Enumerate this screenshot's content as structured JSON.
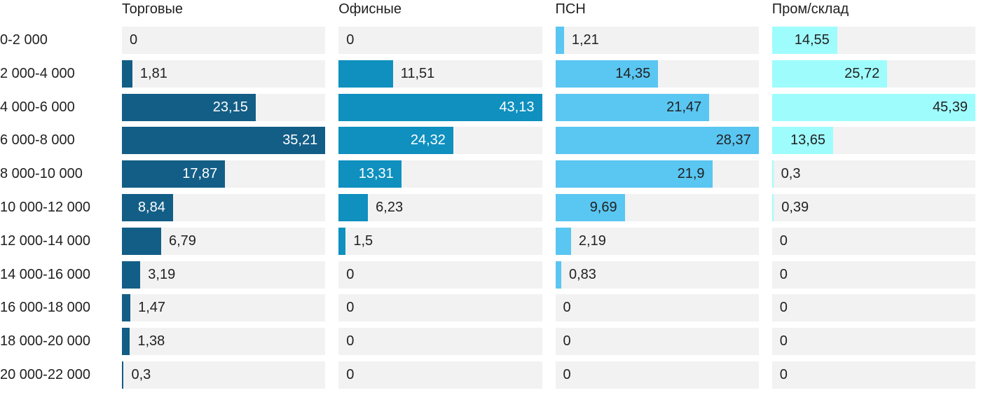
{
  "chart_data": {
    "type": "bar",
    "orientation": "horizontal",
    "layout": "small-multiples, 4 value columns sharing one category axis, each column scaled to its own max",
    "title": "",
    "xlabel": "",
    "ylabel": "",
    "grid": false,
    "legend_position": "column-headers-top",
    "track_color": "#f2f2f2",
    "text_color": "#212121",
    "categories": [
      "0-2 000",
      "2 000-4 000",
      "4 000-6 000",
      "6 000-8 000",
      "8 000-10 000",
      "10 000-12 000",
      "12 000-14 000",
      "14 000-16 000",
      "16 000-18 000",
      "18 000-20 000",
      "20 000-22 000"
    ],
    "series": [
      {
        "name": "Торговые",
        "color": "#135e86",
        "label_color_inside": "#ffffff",
        "axis_max": 35.21,
        "values": [
          0,
          1.81,
          23.15,
          35.21,
          17.87,
          8.84,
          6.79,
          3.19,
          1.47,
          1.38,
          0.3
        ],
        "display": [
          "0",
          "1,81",
          "23,15",
          "35,21",
          "17,87",
          "8,84",
          "6,79",
          "3,19",
          "1,47",
          "1,38",
          "0,3"
        ]
      },
      {
        "name": "Офисные",
        "color": "#0f90bf",
        "label_color_inside": "#ffffff",
        "axis_max": 43.13,
        "values": [
          0,
          11.51,
          43.13,
          24.32,
          13.31,
          6.23,
          1.5,
          0,
          0,
          0,
          0
        ],
        "display": [
          "0",
          "11,51",
          "43,13",
          "24,32",
          "13,31",
          "6,23",
          "1,5",
          "0",
          "0",
          "0",
          "0"
        ]
      },
      {
        "name": "ПСН",
        "color": "#5ac6f2",
        "label_color_inside": "#212121",
        "axis_max": 28.37,
        "values": [
          1.21,
          14.35,
          21.47,
          28.37,
          21.9,
          9.69,
          2.19,
          0.83,
          0,
          0,
          0
        ],
        "display": [
          "1,21",
          "14,35",
          "21,47",
          "28,37",
          "21,9",
          "9,69",
          "2,19",
          "0,83",
          "0",
          "0",
          "0"
        ]
      },
      {
        "name": "Пром/склад",
        "color": "#9ffcfc",
        "label_color_inside": "#212121",
        "axis_max": 45.39,
        "values": [
          14.55,
          25.72,
          45.39,
          13.65,
          0.3,
          0.39,
          0,
          0,
          0,
          0,
          0
        ],
        "display": [
          "14,55",
          "25,72",
          "45,39",
          "13,65",
          "0,3",
          "0,39",
          "0",
          "0",
          "0",
          "0",
          "0"
        ]
      }
    ]
  }
}
